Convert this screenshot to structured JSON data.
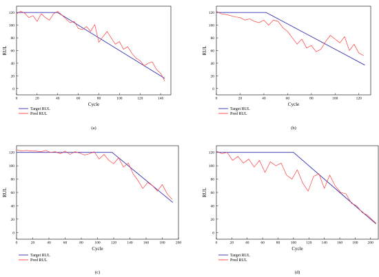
{
  "figure": {
    "background": "#ffffff",
    "target_color": "#2b2bb0",
    "pred_color": "#ff3b3b"
  },
  "chart_data": [
    {
      "type": "line",
      "panel": "(a)",
      "caption": "(a)",
      "xlabel": "Cycle",
      "ylabel": "RUL",
      "xlim": [
        0,
        150
      ],
      "ylim": [
        -10,
        130
      ],
      "xticks": [
        0,
        20,
        40,
        60,
        80,
        100,
        120,
        140
      ],
      "yticks": [
        0,
        20,
        40,
        60,
        80,
        100,
        120
      ],
      "legend": "bottom-left",
      "series": [
        {
          "name": "Target RUL",
          "color": "#2b2bb0",
          "x": [
            0,
            40,
            144
          ],
          "y": [
            120,
            120,
            16
          ]
        },
        {
          "name": "Pred RUL",
          "color": "#ff3b3b",
          "x": [
            0,
            4,
            8,
            12,
            16,
            20,
            24,
            28,
            32,
            36,
            40,
            44,
            48,
            52,
            56,
            60,
            64,
            68,
            72,
            76,
            80,
            84,
            88,
            92,
            96,
            100,
            104,
            108,
            112,
            116,
            120,
            124,
            128,
            132,
            136,
            140,
            144
          ],
          "y": [
            118,
            122,
            119,
            112,
            115,
            106,
            118,
            112,
            108,
            118,
            122,
            116,
            110,
            104,
            106,
            95,
            93,
            98,
            90,
            101,
            73,
            82,
            90,
            80,
            70,
            74,
            62,
            66,
            56,
            48,
            44,
            36,
            40,
            42,
            30,
            24,
            12
          ]
        }
      ]
    },
    {
      "type": "line",
      "panel": "(b)",
      "caption": "(b)",
      "xlabel": "Cycle",
      "ylabel": "RUL",
      "xlim": [
        0,
        130
      ],
      "ylim": [
        -10,
        130
      ],
      "xticks": [
        0,
        20,
        40,
        60,
        80,
        100,
        120
      ],
      "yticks": [
        0,
        20,
        40,
        60,
        80,
        100,
        120
      ],
      "legend": "bottom-left",
      "series": [
        {
          "name": "Target RUL",
          "color": "#2b2bb0",
          "x": [
            0,
            42,
            125
          ],
          "y": [
            120,
            120,
            37
          ]
        },
        {
          "name": "Pred RUL",
          "color": "#ff3b3b",
          "x": [
            0,
            4,
            8,
            12,
            16,
            20,
            24,
            28,
            32,
            36,
            40,
            44,
            48,
            52,
            56,
            60,
            64,
            68,
            72,
            76,
            80,
            84,
            88,
            92,
            96,
            100,
            104,
            108,
            112,
            116,
            120,
            124
          ],
          "y": [
            122,
            118,
            117,
            115,
            113,
            112,
            108,
            110,
            106,
            104,
            108,
            100,
            108,
            106,
            96,
            90,
            80,
            70,
            78,
            64,
            68,
            58,
            62,
            74,
            84,
            78,
            72,
            82,
            60,
            70,
            56,
            52
          ]
        }
      ]
    },
    {
      "type": "line",
      "panel": "(c)",
      "caption": "(c)",
      "xlabel": "Cycle",
      "ylabel": "RUL",
      "xlim": [
        0,
        200
      ],
      "ylim": [
        -10,
        130
      ],
      "xticks": [
        0,
        20,
        40,
        60,
        80,
        100,
        120,
        140,
        160,
        180,
        200
      ],
      "yticks": [
        0,
        20,
        40,
        60,
        80,
        100,
        120
      ],
      "legend": "bottom-left",
      "series": [
        {
          "name": "Target RUL",
          "color": "#2b2bb0",
          "x": [
            0,
            118,
            193
          ],
          "y": [
            120,
            120,
            45
          ]
        },
        {
          "name": "Pred RUL",
          "color": "#ff3b3b",
          "x": [
            0,
            6,
            12,
            18,
            24,
            30,
            36,
            42,
            48,
            54,
            60,
            66,
            72,
            78,
            84,
            90,
            96,
            102,
            108,
            114,
            120,
            126,
            132,
            138,
            144,
            150,
            156,
            162,
            168,
            174,
            180,
            186,
            192
          ],
          "y": [
            124,
            122,
            123,
            122,
            122,
            121,
            123,
            120,
            121,
            118,
            122,
            117,
            121,
            119,
            116,
            118,
            121,
            110,
            117,
            108,
            103,
            112,
            98,
            104,
            88,
            78,
            66,
            75,
            70,
            62,
            72,
            58,
            50
          ]
        }
      ]
    },
    {
      "type": "line",
      "panel": "(d)",
      "caption": "(d)",
      "xlabel": "Cycle",
      "ylabel": "RUL",
      "xlim": [
        0,
        210
      ],
      "ylim": [
        -10,
        130
      ],
      "xticks": [
        0,
        20,
        40,
        60,
        80,
        100,
        120,
        140,
        160,
        180,
        200
      ],
      "yticks": [
        0,
        20,
        40,
        60,
        80,
        100,
        120
      ],
      "legend": "bottom-left",
      "series": [
        {
          "name": "Target RUL",
          "color": "#2b2bb0",
          "x": [
            0,
            100,
            207
          ],
          "y": [
            120,
            120,
            13
          ]
        },
        {
          "name": "Pred RUL",
          "color": "#ff3b3b",
          "x": [
            0,
            7,
            14,
            21,
            28,
            35,
            42,
            49,
            56,
            63,
            70,
            77,
            84,
            91,
            98,
            105,
            112,
            119,
            126,
            133,
            140,
            147,
            154,
            161,
            168,
            175,
            182,
            189,
            196,
            203,
            207
          ],
          "y": [
            122,
            118,
            120,
            108,
            114,
            104,
            110,
            98,
            108,
            90,
            106,
            100,
            104,
            86,
            80,
            94,
            74,
            62,
            84,
            88,
            66,
            86,
            70,
            60,
            58,
            44,
            40,
            30,
            26,
            18,
            14
          ]
        }
      ]
    }
  ]
}
